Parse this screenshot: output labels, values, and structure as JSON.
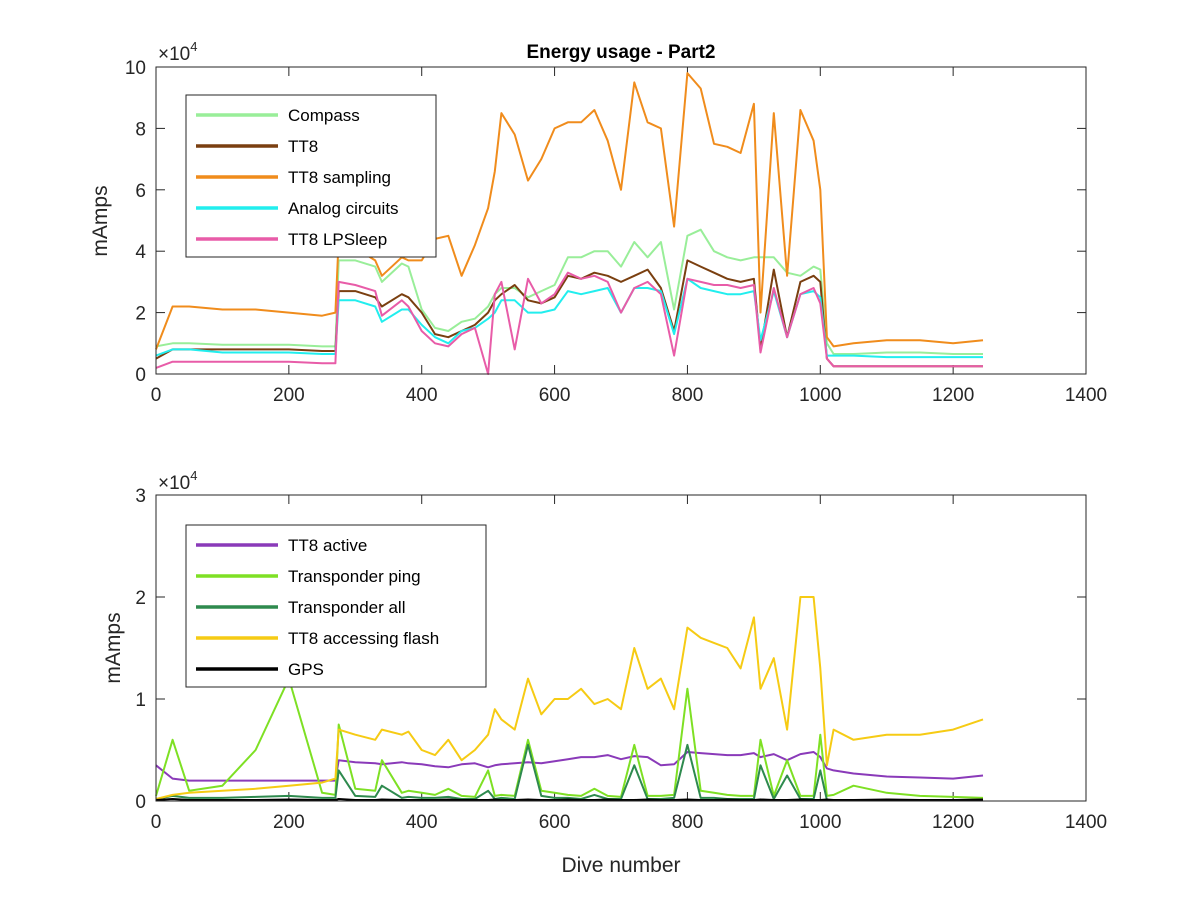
{
  "chart_data": [
    {
      "type": "line",
      "title": "Energy usage - Part2",
      "xlabel": "",
      "ylabel": "mAmps",
      "xlim": [
        0,
        1400
      ],
      "ylim": [
        0,
        100000
      ],
      "xticks": [
        "0",
        "200",
        "400",
        "600",
        "800",
        "1000",
        "1200",
        "1400"
      ],
      "yticks": [
        "0",
        "2",
        "4",
        "6",
        "8",
        "10"
      ],
      "multiplier_base": "×10",
      "multiplier_exp": "4",
      "legend_position": "top-left",
      "grid": false,
      "x": [
        0,
        25,
        50,
        100,
        150,
        200,
        250,
        270,
        275,
        300,
        330,
        340,
        370,
        380,
        400,
        420,
        440,
        460,
        480,
        500,
        510,
        520,
        540,
        560,
        580,
        600,
        620,
        640,
        660,
        680,
        700,
        720,
        740,
        760,
        780,
        800,
        820,
        840,
        860,
        880,
        900,
        910,
        930,
        950,
        970,
        990,
        1000,
        1010,
        1020,
        1050,
        1100,
        1150,
        1200,
        1245
      ],
      "series": [
        {
          "name": "Compass",
          "color": "#99ee99",
          "values": [
            9000,
            10000,
            10000,
            9500,
            9500,
            9500,
            9000,
            9000,
            37000,
            37000,
            35000,
            30000,
            36000,
            35000,
            21000,
            15000,
            14000,
            17000,
            18000,
            22000,
            26000,
            28000,
            28000,
            25000,
            27000,
            29000,
            38000,
            38000,
            40000,
            40000,
            35000,
            43000,
            38000,
            43000,
            21000,
            45000,
            47000,
            40000,
            38000,
            37000,
            38000,
            38000,
            38000,
            33000,
            32000,
            35000,
            34000,
            10000,
            6500,
            6500,
            7000,
            7000,
            6500,
            6500
          ]
        },
        {
          "name": "TT8",
          "color": "#7a3f10",
          "values": [
            5000,
            8000,
            8000,
            8000,
            8000,
            8000,
            7500,
            7500,
            27000,
            27000,
            25000,
            22000,
            26000,
            25000,
            20000,
            13000,
            12000,
            14000,
            16000,
            20000,
            24000,
            26000,
            29000,
            24000,
            23000,
            25000,
            32000,
            31000,
            33000,
            32000,
            30000,
            32000,
            34000,
            28000,
            14000,
            37000,
            35000,
            33000,
            31000,
            30000,
            31000,
            8000,
            34000,
            12000,
            30000,
            32000,
            30000,
            5000,
            2500,
            2500,
            2500,
            2500,
            2500,
            2500
          ]
        },
        {
          "name": "TT8 sampling",
          "color": "#f08c1c",
          "values": [
            8000,
            22000,
            22000,
            21000,
            21000,
            20000,
            19000,
            20000,
            44000,
            41000,
            37000,
            32000,
            38000,
            37000,
            37000,
            44000,
            45000,
            32000,
            42000,
            54000,
            66000,
            85000,
            78000,
            63000,
            70000,
            80000,
            82000,
            82000,
            86000,
            76000,
            60000,
            95000,
            82000,
            80000,
            48000,
            98000,
            93000,
            75000,
            74000,
            72000,
            88000,
            20000,
            85000,
            32000,
            86000,
            76000,
            60000,
            12000,
            9000,
            10000,
            11000,
            11000,
            10000,
            11000
          ]
        },
        {
          "name": "Analog circuits",
          "color": "#22eeee",
          "values": [
            6000,
            8000,
            8000,
            7000,
            7000,
            7000,
            6500,
            6500,
            24000,
            24000,
            22000,
            17000,
            21000,
            21000,
            16000,
            12000,
            10000,
            14000,
            15000,
            18000,
            20000,
            24000,
            24000,
            20000,
            20000,
            21000,
            27000,
            26000,
            27000,
            28000,
            20000,
            28000,
            28000,
            27000,
            13000,
            31000,
            28000,
            27000,
            26000,
            26000,
            27000,
            11000,
            27000,
            12000,
            26000,
            27000,
            25000,
            6000,
            6000,
            6000,
            5500,
            5500,
            5500,
            5500
          ]
        },
        {
          "name": "TT8 LPSleep",
          "color": "#e85ca8",
          "values": [
            2000,
            4000,
            4000,
            4000,
            4000,
            4000,
            3500,
            3500,
            30000,
            29000,
            27000,
            19000,
            24000,
            22000,
            14000,
            10000,
            9000,
            13000,
            15000,
            0,
            26000,
            30000,
            8000,
            31000,
            23000,
            26000,
            33000,
            31000,
            32000,
            30000,
            20000,
            28000,
            30000,
            26000,
            6000,
            31000,
            30000,
            29000,
            29000,
            28000,
            29000,
            7000,
            28000,
            12000,
            26000,
            28000,
            23000,
            5000,
            2500,
            2500,
            2500,
            2500,
            2500,
            2500
          ]
        }
      ]
    },
    {
      "type": "line",
      "title": "",
      "xlabel": "Dive number",
      "ylabel": "mAmps",
      "xlim": [
        0,
        1400
      ],
      "ylim": [
        0,
        30000
      ],
      "xticks": [
        "0",
        "200",
        "400",
        "600",
        "800",
        "1000",
        "1200",
        "1400"
      ],
      "yticks": [
        "0",
        "1",
        "2",
        "3"
      ],
      "multiplier_base": "×10",
      "multiplier_exp": "4",
      "legend_position": "top-left",
      "grid": false,
      "x": [
        0,
        25,
        50,
        100,
        150,
        200,
        250,
        270,
        275,
        300,
        330,
        340,
        370,
        380,
        400,
        420,
        440,
        460,
        480,
        500,
        510,
        520,
        540,
        560,
        580,
        600,
        620,
        640,
        660,
        680,
        700,
        720,
        740,
        760,
        780,
        800,
        820,
        840,
        860,
        880,
        900,
        910,
        930,
        950,
        970,
        990,
        1000,
        1010,
        1020,
        1050,
        1100,
        1150,
        1200,
        1245
      ],
      "series": [
        {
          "name": "TT8 active",
          "color": "#8a3ab9",
          "values": [
            3500,
            2200,
            2000,
            2000,
            2000,
            2000,
            2000,
            2000,
            4000,
            3800,
            3700,
            3600,
            3800,
            3700,
            3600,
            3400,
            3300,
            3600,
            3700,
            3300,
            3500,
            3600,
            3700,
            3800,
            3700,
            3900,
            4100,
            4300,
            4300,
            4500,
            4100,
            4400,
            4300,
            3500,
            3600,
            4800,
            4700,
            4600,
            4500,
            4500,
            4700,
            4300,
            4600,
            4000,
            4600,
            4800,
            4300,
            3200,
            3000,
            2700,
            2400,
            2300,
            2200,
            2500
          ]
        },
        {
          "name": "Transponder ping",
          "color": "#7ee024",
          "values": [
            500,
            6000,
            1000,
            1500,
            5000,
            12000,
            800,
            600,
            7500,
            1200,
            1000,
            4000,
            800,
            1000,
            800,
            600,
            1200,
            500,
            400,
            3000,
            500,
            600,
            500,
            6000,
            1000,
            800,
            600,
            500,
            1200,
            500,
            400,
            5500,
            500,
            500,
            600,
            11000,
            1000,
            800,
            600,
            500,
            500,
            6000,
            500,
            4000,
            500,
            500,
            6500,
            500,
            600,
            1500,
            800,
            500,
            400,
            300
          ]
        },
        {
          "name": "Transponder all",
          "color": "#2e8a4e",
          "values": [
            200,
            500,
            300,
            300,
            400,
            500,
            300,
            300,
            3000,
            500,
            400,
            1500,
            300,
            400,
            300,
            300,
            400,
            200,
            200,
            1000,
            200,
            300,
            200,
            5500,
            500,
            300,
            300,
            200,
            600,
            200,
            200,
            3500,
            200,
            200,
            300,
            5500,
            300,
            300,
            200,
            200,
            200,
            3500,
            200,
            2500,
            200,
            200,
            3000,
            100,
            100,
            100,
            100,
            100,
            100,
            100
          ]
        },
        {
          "name": "TT8 accessing flash",
          "color": "#f6cb14",
          "values": [
            200,
            600,
            800,
            1000,
            1200,
            1500,
            1800,
            2200,
            7000,
            6500,
            6000,
            7000,
            6500,
            6800,
            5000,
            4500,
            6000,
            4000,
            5000,
            6500,
            9000,
            8000,
            7000,
            12000,
            8500,
            10000,
            10000,
            11000,
            9500,
            10000,
            9000,
            15000,
            11000,
            12000,
            9000,
            17000,
            16000,
            15500,
            15000,
            13000,
            18000,
            11000,
            14000,
            7000,
            20000,
            20000,
            13000,
            3500,
            7000,
            6000,
            6500,
            6500,
            7000,
            8000
          ]
        },
        {
          "name": "GPS",
          "color": "#000000",
          "values": [
            100,
            200,
            100,
            100,
            100,
            150,
            100,
            100,
            200,
            100,
            100,
            150,
            100,
            100,
            100,
            100,
            150,
            100,
            100,
            100,
            150,
            100,
            100,
            150,
            100,
            100,
            150,
            100,
            100,
            150,
            100,
            100,
            150,
            100,
            100,
            150,
            100,
            100,
            150,
            100,
            100,
            150,
            100,
            100,
            150,
            100,
            100,
            150,
            100,
            100,
            150,
            100,
            100,
            150
          ]
        }
      ]
    }
  ]
}
